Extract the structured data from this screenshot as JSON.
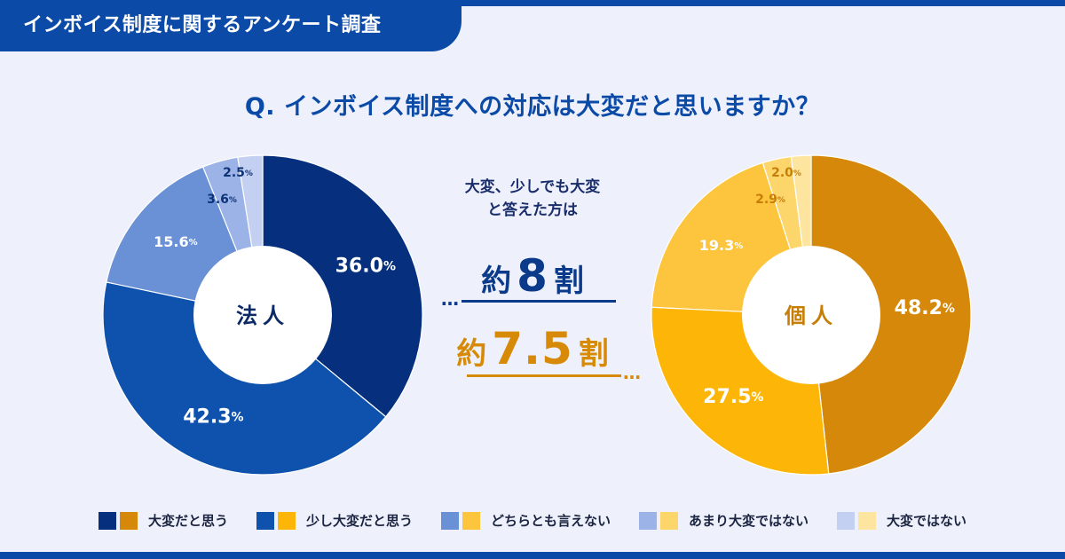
{
  "header": {
    "tag": "インボイス制度に関するアンケート調査"
  },
  "question": "Q. インボイス制度への対応は大変だと思いますか？",
  "summary": {
    "line1": "大変、少しでも大変",
    "line2": "と答えた方は",
    "corp": {
      "prefix": "約",
      "number": "8",
      "suffix": "割"
    },
    "indiv": {
      "prefix": "約",
      "number": "7.5",
      "suffix": "割"
    }
  },
  "chart_data": [
    {
      "type": "pie",
      "title": "法人",
      "categories": [
        "大変だと思う",
        "少し大変だと思う",
        "どちらとも言えない",
        "あまり大変ではない",
        "大変ではない"
      ],
      "values": [
        36.0,
        42.3,
        15.6,
        3.6,
        2.5
      ],
      "labels": [
        "36.0",
        "42.3",
        "15.6",
        "3.6",
        "2.5"
      ],
      "unit": "%",
      "colors": [
        "#06307e",
        "#0f52ad",
        "#6a91d6",
        "#9bb3e6",
        "#c3d0f2"
      ],
      "label_colors": [
        "#ffffff",
        "#ffffff",
        "#ffffff",
        "#0e3277",
        "#0e3277"
      ]
    },
    {
      "type": "pie",
      "title": "個人",
      "categories": [
        "大変だと思う",
        "少し大変だと思う",
        "どちらとも言えない",
        "あまり大変ではない",
        "大変ではない"
      ],
      "values": [
        48.2,
        27.5,
        19.3,
        2.9,
        2.0
      ],
      "labels": [
        "48.2",
        "27.5",
        "19.3",
        "2.9",
        "2.0"
      ],
      "unit": "%",
      "colors": [
        "#d6880a",
        "#fdb508",
        "#fdc53d",
        "#fdd66b",
        "#fee59f"
      ],
      "label_colors": [
        "#ffffff",
        "#ffffff",
        "#ffffff",
        "#c77e08",
        "#c77e08"
      ]
    }
  ],
  "legend": [
    {
      "label": "大変だと思う",
      "colors": [
        "#06307e",
        "#d6880a"
      ]
    },
    {
      "label": "少し大変だと思う",
      "colors": [
        "#0f52ad",
        "#fdb508"
      ]
    },
    {
      "label": "どちらとも言えない",
      "colors": [
        "#6a91d6",
        "#fdc53d"
      ]
    },
    {
      "label": "あまり大変ではない",
      "colors": [
        "#9bb3e6",
        "#fdd66b"
      ]
    },
    {
      "label": "大変ではない",
      "colors": [
        "#c3d0f2",
        "#fee59f"
      ]
    }
  ],
  "accent": {
    "blue": "#0b3a8a",
    "orange": "#d68a08"
  }
}
